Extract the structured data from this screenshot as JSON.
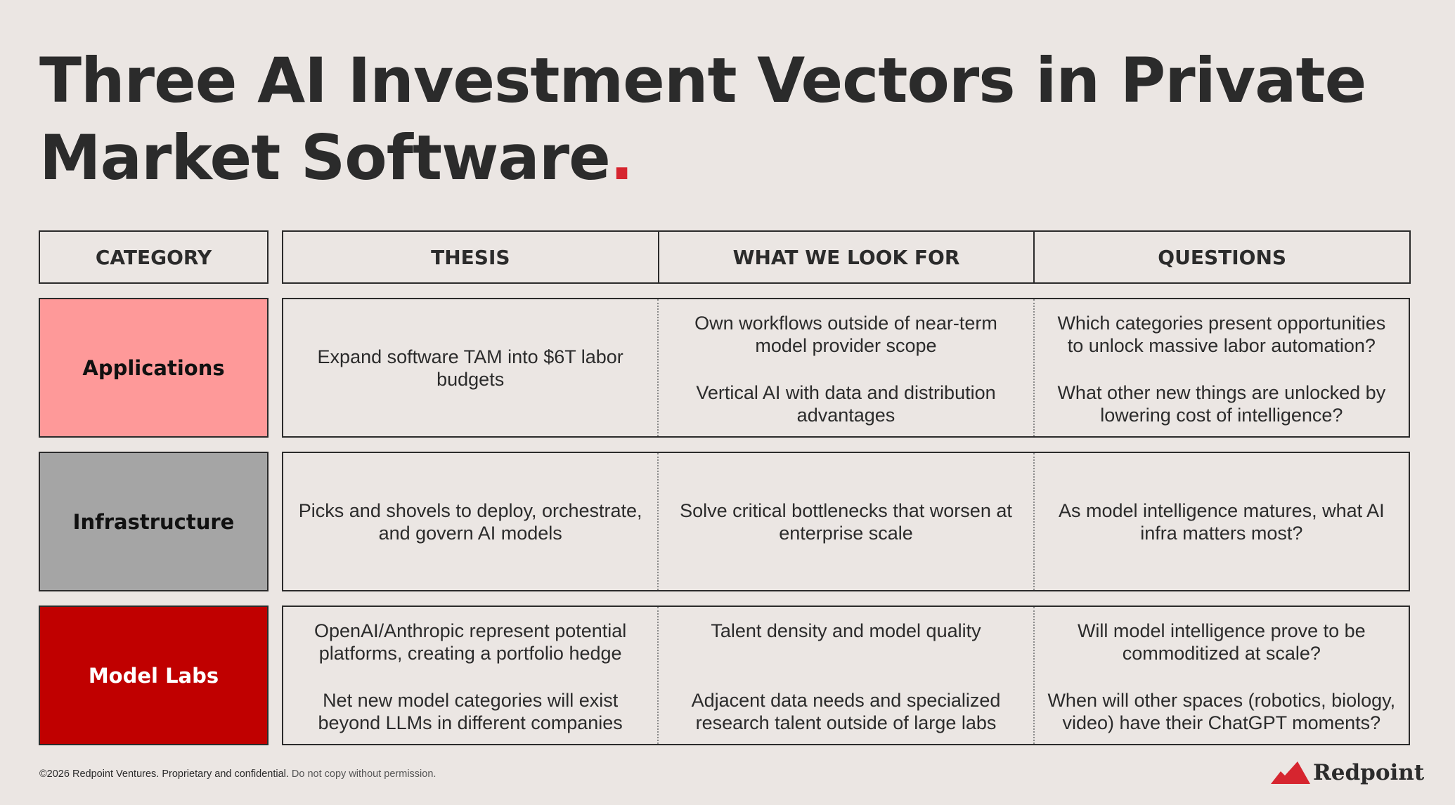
{
  "title": {
    "line1": "Three AI Investment Vectors in Private",
    "line2": "Market Software",
    "dot": "."
  },
  "headers": {
    "category": "CATEGORY",
    "thesis": "THESIS",
    "look_for": "WHAT WE LOOK FOR",
    "questions": "QUESTIONS"
  },
  "rows": [
    {
      "category": "Applications",
      "color": "#fe9999",
      "text_color": "#111111",
      "thesis": [
        "Expand software TAM into $6T labor budgets"
      ],
      "look_for": [
        "Own workflows outside of near-term model provider scope",
        "Vertical AI with data and distribution advantages"
      ],
      "questions": [
        "Which categories present opportunities to unlock massive labor automation?",
        "What other new things are unlocked by lowering cost of intelligence?"
      ]
    },
    {
      "category": "Infrastructure",
      "color": "#a5a5a5",
      "text_color": "#111111",
      "thesis": [
        "Picks and shovels to deploy, orchestrate, and govern AI models"
      ],
      "look_for": [
        "Solve critical bottlenecks that worsen at enterprise scale"
      ],
      "questions": [
        "As model intelligence matures, what AI infra matters most?"
      ]
    },
    {
      "category": "Model Labs",
      "color": "#c00000",
      "text_color": "#ffffff",
      "thesis": [
        "OpenAI/Anthropic represent potential platforms, creating a portfolio hedge",
        "Net new model categories will exist beyond LLMs in different companies"
      ],
      "look_for": [
        "Talent density and model quality",
        "Adjacent data needs and specialized research talent outside of large labs"
      ],
      "questions": [
        "Will model intelligence prove to be commoditized at scale?",
        "When will other spaces (robotics, biology, video) have their ChatGPT moments?"
      ]
    }
  ],
  "footer": {
    "copyright": "©2026 Redpoint Ventures. Proprietary and confidential.",
    "notice": "Do not copy without permission."
  },
  "logo": {
    "icon": "mountain-icon",
    "wordmark": "Redpoint",
    "color": "#d6252f"
  }
}
